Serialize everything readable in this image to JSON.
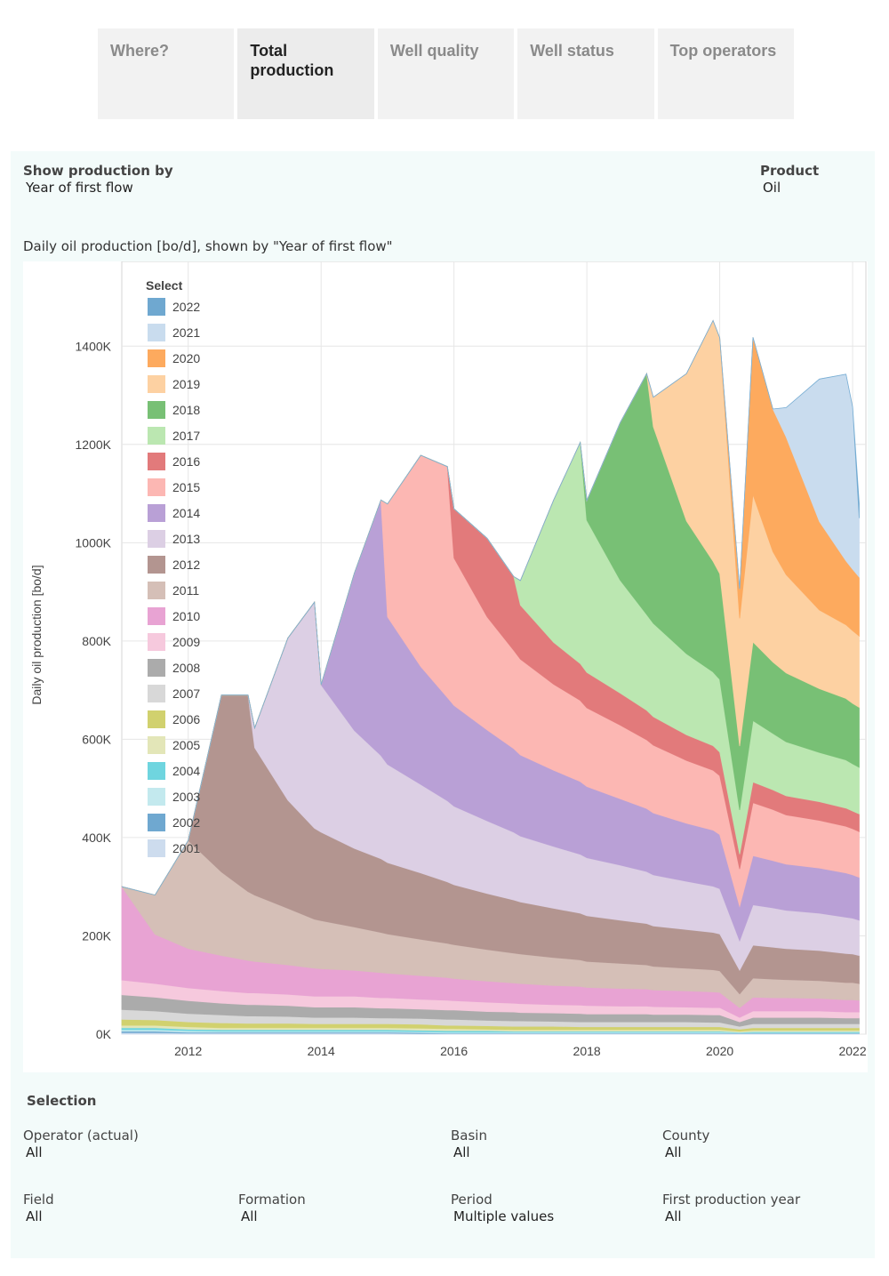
{
  "tabs": [
    {
      "label": "Where?",
      "active": false
    },
    {
      "label": "Total production",
      "active": true
    },
    {
      "label": "Well quality",
      "active": false
    },
    {
      "label": "Well status",
      "active": false
    },
    {
      "label": "Top operators",
      "active": false
    }
  ],
  "controls": {
    "show_by_label": "Show production by",
    "show_by_value": "Year of first flow",
    "product_label": "Product",
    "product_value": "Oil"
  },
  "chart_heading": "Daily oil production [bo/d], shown by \"Year of first flow\"",
  "legend_title": "Select",
  "chart_data": {
    "type": "area",
    "stacked": true,
    "title": "Daily oil production [bo/d], shown by \"Year of first flow\"",
    "ylabel": "Daily oil production [bo/d]",
    "xlabel": "",
    "xlim": [
      2011.0,
      2022.2
    ],
    "ylim": [
      0,
      1500
    ],
    "y_unit": "K",
    "yticks": [
      0,
      200,
      400,
      600,
      800,
      1000,
      1200,
      1400
    ],
    "ytick_labels": [
      "0K",
      "200K",
      "400K",
      "600K",
      "800K",
      "1000K",
      "1200K",
      "1400K"
    ],
    "xticks": [
      2012,
      2014,
      2016,
      2018,
      2020,
      2022
    ],
    "xtick_labels": [
      "2012",
      "2014",
      "2016",
      "2018",
      "2020",
      "2022"
    ],
    "grid": true,
    "legend_position": "top-left",
    "x": [
      2011.0,
      2011.5,
      2012.0,
      2012.5,
      2012.9,
      2013.0,
      2013.5,
      2013.9,
      2014.0,
      2014.5,
      2014.9,
      2015.0,
      2015.5,
      2015.9,
      2016.0,
      2016.5,
      2016.9,
      2017.0,
      2017.5,
      2017.9,
      2018.0,
      2018.5,
      2018.9,
      2019.0,
      2019.5,
      2019.9,
      2020.0,
      2020.3,
      2020.5,
      2020.8,
      2021.0,
      2021.5,
      2021.9,
      2022.0,
      2022.1
    ],
    "series": [
      {
        "name": "2001",
        "color": "#cddcee",
        "values": [
          3,
          3,
          2,
          2,
          2,
          2,
          2,
          2,
          2,
          2,
          2,
          2,
          1,
          1,
          1,
          1,
          1,
          1,
          1,
          1,
          1,
          1,
          1,
          1,
          1,
          1,
          1,
          1,
          1,
          1,
          1,
          1,
          1,
          1,
          1
        ]
      },
      {
        "name": "2002",
        "color": "#6fa8d0",
        "values": [
          3,
          3,
          2,
          2,
          2,
          2,
          2,
          2,
          2,
          2,
          2,
          2,
          2,
          1,
          1,
          1,
          1,
          1,
          1,
          1,
          1,
          1,
          1,
          1,
          1,
          1,
          1,
          1,
          1,
          1,
          1,
          1,
          1,
          1,
          1
        ]
      },
      {
        "name": "2003",
        "color": "#c3e9ee",
        "values": [
          3,
          3,
          3,
          2,
          2,
          2,
          2,
          2,
          2,
          2,
          2,
          2,
          2,
          2,
          2,
          2,
          2,
          2,
          2,
          2,
          2,
          2,
          2,
          2,
          2,
          2,
          2,
          1,
          1,
          1,
          1,
          1,
          1,
          1,
          1
        ]
      },
      {
        "name": "2004",
        "color": "#6fd5df",
        "values": [
          4,
          4,
          3,
          3,
          3,
          3,
          3,
          3,
          3,
          3,
          3,
          3,
          3,
          3,
          3,
          3,
          2,
          2,
          2,
          2,
          2,
          2,
          2,
          2,
          2,
          2,
          2,
          1,
          2,
          2,
          2,
          2,
          2,
          2,
          2
        ]
      },
      {
        "name": "2005",
        "color": "#e3e6b8",
        "values": [
          5,
          5,
          5,
          4,
          4,
          4,
          4,
          4,
          4,
          4,
          4,
          4,
          4,
          4,
          4,
          3,
          3,
          3,
          3,
          3,
          3,
          3,
          3,
          3,
          3,
          3,
          3,
          2,
          3,
          3,
          3,
          3,
          3,
          3,
          3
        ]
      },
      {
        "name": "2006",
        "color": "#d1d16e",
        "values": [
          12,
          11,
          10,
          10,
          9,
          9,
          9,
          8,
          8,
          8,
          8,
          8,
          8,
          7,
          7,
          7,
          7,
          7,
          7,
          6,
          6,
          6,
          6,
          6,
          6,
          6,
          6,
          4,
          5,
          5,
          5,
          5,
          5,
          5,
          5
        ]
      },
      {
        "name": "2007",
        "color": "#d8d8d8",
        "values": [
          20,
          18,
          17,
          16,
          15,
          15,
          14,
          13,
          13,
          13,
          12,
          12,
          12,
          12,
          12,
          11,
          11,
          11,
          10,
          10,
          10,
          10,
          10,
          10,
          10,
          9,
          9,
          6,
          8,
          8,
          8,
          8,
          8,
          8,
          8
        ]
      },
      {
        "name": "2008",
        "color": "#ababab",
        "values": [
          30,
          28,
          26,
          24,
          23,
          23,
          22,
          21,
          21,
          21,
          20,
          20,
          19,
          19,
          19,
          18,
          18,
          17,
          17,
          17,
          16,
          16,
          16,
          15,
          15,
          15,
          15,
          9,
          13,
          13,
          13,
          13,
          12,
          12,
          12
        ]
      },
      {
        "name": "2009",
        "color": "#f6c9dd",
        "values": [
          30,
          28,
          26,
          25,
          24,
          24,
          23,
          22,
          22,
          22,
          21,
          21,
          20,
          20,
          19,
          19,
          18,
          18,
          17,
          17,
          17,
          16,
          16,
          16,
          15,
          15,
          15,
          9,
          13,
          13,
          13,
          13,
          12,
          12,
          12
        ]
      },
      {
        "name": "2010",
        "color": "#e8a3d3",
        "values": [
          190,
          100,
          80,
          72,
          66,
          64,
          60,
          57,
          56,
          53,
          51,
          50,
          48,
          46,
          45,
          43,
          41,
          41,
          39,
          38,
          37,
          36,
          35,
          34,
          33,
          32,
          31,
          20,
          28,
          27,
          27,
          26,
          25,
          25,
          24
        ]
      },
      {
        "name": "2011",
        "color": "#d5bfb7",
        "values": [
          0,
          80,
          220,
          170,
          140,
          135,
          115,
          100,
          98,
          88,
          82,
          80,
          74,
          70,
          69,
          64,
          61,
          60,
          57,
          54,
          53,
          51,
          49,
          48,
          46,
          45,
          44,
          28,
          39,
          38,
          37,
          36,
          35,
          35,
          34
        ]
      },
      {
        "name": "2012",
        "color": "#b39590",
        "values": [
          0,
          0,
          0,
          360,
          400,
          300,
          220,
          185,
          180,
          160,
          150,
          145,
          135,
          125,
          122,
          114,
          108,
          106,
          100,
          95,
          93,
          88,
          84,
          82,
          79,
          76,
          75,
          48,
          67,
          65,
          63,
          61,
          59,
          58,
          57
        ]
      },
      {
        "name": "2013",
        "color": "#dccfe4",
        "values": [
          0,
          0,
          0,
          0,
          0,
          40,
          330,
          460,
          300,
          240,
          210,
          200,
          180,
          165,
          160,
          148,
          138,
          134,
          126,
          120,
          118,
          112,
          106,
          104,
          98,
          94,
          92,
          60,
          82,
          80,
          78,
          76,
          74,
          73,
          72
        ]
      },
      {
        "name": "2014",
        "color": "#b9a0d6",
        "values": [
          0,
          0,
          0,
          0,
          0,
          0,
          0,
          0,
          0,
          320,
          520,
          300,
          240,
          210,
          205,
          185,
          170,
          165,
          155,
          148,
          145,
          135,
          128,
          126,
          118,
          114,
          110,
          70,
          100,
          96,
          94,
          92,
          90,
          88,
          87
        ]
      },
      {
        "name": "2015",
        "color": "#fcb7b3",
        "values": [
          0,
          0,
          0,
          0,
          0,
          0,
          0,
          0,
          0,
          0,
          0,
          230,
          430,
          470,
          300,
          230,
          200,
          195,
          175,
          165,
          160,
          150,
          140,
          138,
          128,
          122,
          120,
          76,
          108,
          104,
          100,
          97,
          95,
          94,
          93
        ]
      },
      {
        "name": "2016",
        "color": "#e27a7b",
        "values": [
          0,
          0,
          0,
          0,
          0,
          0,
          0,
          0,
          0,
          0,
          0,
          0,
          0,
          0,
          100,
          160,
          150,
          110,
          85,
          75,
          72,
          65,
          60,
          58,
          52,
          50,
          48,
          30,
          42,
          40,
          39,
          38,
          37,
          36,
          36
        ]
      },
      {
        "name": "2017",
        "color": "#bbe7b1",
        "values": [
          0,
          0,
          0,
          0,
          0,
          0,
          0,
          0,
          0,
          0,
          0,
          0,
          0,
          0,
          0,
          0,
          0,
          50,
          290,
          450,
          310,
          230,
          195,
          190,
          165,
          150,
          148,
          90,
          125,
          115,
          110,
          100,
          98,
          96,
          95
        ]
      },
      {
        "name": "2018",
        "color": "#78c075",
        "values": [
          0,
          0,
          0,
          0,
          0,
          0,
          0,
          0,
          0,
          0,
          0,
          0,
          0,
          0,
          0,
          0,
          0,
          0,
          0,
          0,
          40,
          320,
          490,
          400,
          270,
          225,
          215,
          130,
          160,
          145,
          140,
          130,
          125,
          123,
          122
        ]
      },
      {
        "name": "2019",
        "color": "#fdd1a2",
        "values": [
          0,
          0,
          0,
          0,
          0,
          0,
          0,
          0,
          0,
          0,
          0,
          0,
          0,
          0,
          0,
          0,
          0,
          0,
          0,
          0,
          0,
          0,
          0,
          60,
          300,
          490,
          480,
          260,
          300,
          225,
          200,
          160,
          150,
          148,
          145
        ]
      },
      {
        "name": "2020",
        "color": "#fdaa5e",
        "values": [
          0,
          0,
          0,
          0,
          0,
          0,
          0,
          0,
          0,
          0,
          0,
          0,
          0,
          0,
          0,
          0,
          0,
          0,
          0,
          0,
          0,
          0,
          0,
          0,
          0,
          0,
          0,
          60,
          320,
          290,
          280,
          180,
          130,
          125,
          120
        ]
      },
      {
        "name": "2021",
        "color": "#c9dcee",
        "values": [
          0,
          0,
          0,
          0,
          0,
          0,
          0,
          0,
          0,
          0,
          0,
          0,
          0,
          0,
          0,
          0,
          0,
          0,
          0,
          0,
          0,
          0,
          0,
          0,
          0,
          0,
          0,
          0,
          0,
          0,
          60,
          290,
          380,
          330,
          120
        ]
      },
      {
        "name": "2022",
        "color": "#6fa8d0",
        "values": [
          0,
          0,
          0,
          0,
          0,
          0,
          0,
          0,
          0,
          0,
          0,
          0,
          0,
          0,
          0,
          0,
          0,
          0,
          0,
          0,
          0,
          0,
          0,
          0,
          0,
          0,
          0,
          0,
          0,
          0,
          0,
          0,
          0,
          0,
          30
        ]
      }
    ]
  },
  "selection": {
    "title": "Selection",
    "filters": [
      {
        "label": "Operator (actual)",
        "value": "All"
      },
      {
        "label": "Basin",
        "value": "All"
      },
      {
        "label": "County",
        "value": "All"
      },
      {
        "label": "Field",
        "value": "All"
      },
      {
        "label": "Formation",
        "value": "All"
      },
      {
        "label": "Period",
        "value": "Multiple values"
      },
      {
        "label": "First production year",
        "value": "All"
      }
    ]
  }
}
